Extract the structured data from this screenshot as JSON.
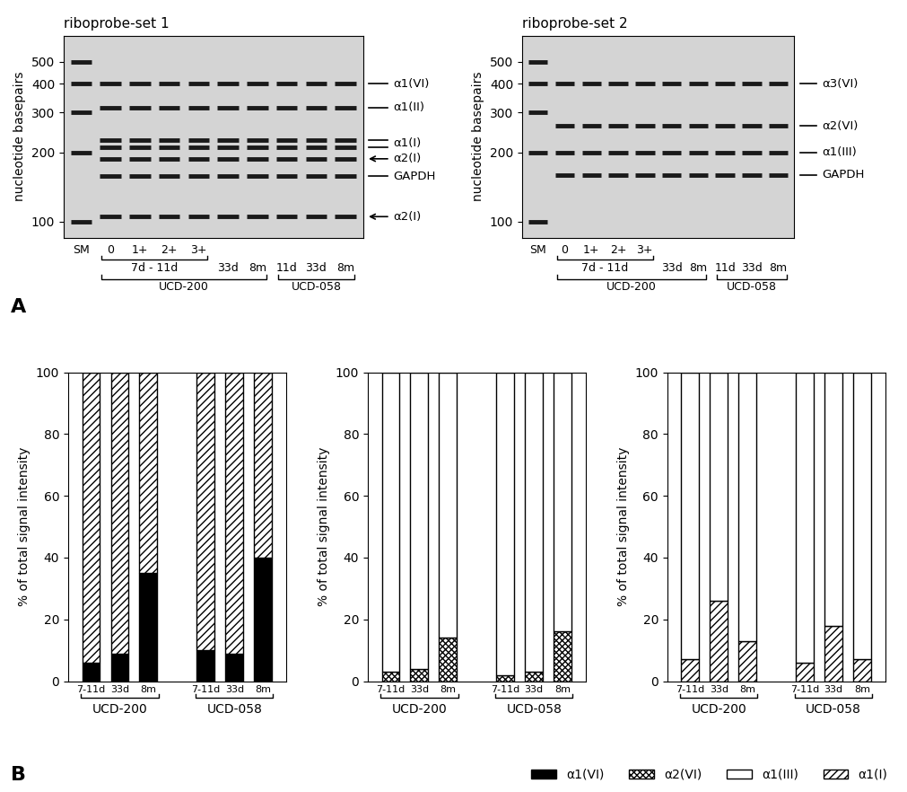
{
  "panel_labels": [
    "A",
    "B"
  ],
  "gels": [
    {
      "title": "riboprobe-set 1",
      "ylabel": "nucleotide basepairs",
      "log": true,
      "ylim": [
        85,
        650
      ],
      "yticks": [
        100,
        200,
        300,
        400,
        500
      ],
      "lanes": [
        {
          "label": "SM"
        },
        {
          "label": "0",
          "time": "7d - 11d",
          "cell_line": "UCD-200"
        },
        {
          "label": "1+",
          "time": "7d - 11d",
          "cell_line": "UCD-200"
        },
        {
          "label": "2+",
          "time": "7d - 11d",
          "cell_line": "UCD-200"
        },
        {
          "label": "3+",
          "time": "7d - 11d",
          "cell_line": "UCD-200"
        },
        {
          "time": "33d",
          "cell_line": "UCD-200"
        },
        {
          "time": "8m",
          "cell_line": "UCD-200"
        },
        {
          "time": "11d",
          "cell_line": "UCD-058"
        },
        {
          "time": "33d",
          "cell_line": "UCD-058"
        },
        {
          "time": "8m",
          "cell_line": "UCD-058"
        }
      ],
      "bands": [
        {
          "label": "α1(VI)",
          "sizes": [
            400
          ],
          "mark": "line"
        },
        {
          "label": "α1(II)",
          "sizes": [
            315
          ],
          "mark": "line"
        },
        {
          "label": "α1(I)",
          "sizes": [
            228,
            212
          ],
          "mark": "line"
        },
        {
          "label": "α2(I)",
          "sizes": [
            188
          ],
          "mark": "arrow"
        },
        {
          "label": "GAPDH",
          "sizes": [
            158
          ],
          "mark": "line"
        },
        {
          "label": "α2(I)",
          "sizes": [
            105
          ],
          "mark": "arrow"
        }
      ]
    },
    {
      "title": "riboprobe-set 2",
      "ylabel": "nucleotide basepairs",
      "log": true,
      "ylim": [
        85,
        650
      ],
      "yticks": [
        100,
        200,
        300,
        400,
        500
      ],
      "lanes": [
        {
          "label": "SM"
        },
        {
          "label": "0",
          "time": "7d - 11d",
          "cell_line": "UCD-200"
        },
        {
          "label": "1+",
          "time": "7d - 11d",
          "cell_line": "UCD-200"
        },
        {
          "label": "2+",
          "time": "7d - 11d",
          "cell_line": "UCD-200"
        },
        {
          "label": "3+",
          "time": "7d - 11d",
          "cell_line": "UCD-200"
        },
        {
          "time": "33d",
          "cell_line": "UCD-200"
        },
        {
          "time": "8m",
          "cell_line": "UCD-200"
        },
        {
          "time": "11d",
          "cell_line": "UCD-058"
        },
        {
          "time": "33d",
          "cell_line": "UCD-058"
        },
        {
          "time": "8m",
          "cell_line": "UCD-058"
        }
      ],
      "bands": [
        {
          "label": "α3(VI)",
          "sizes": [
            400
          ],
          "mark": "line"
        },
        {
          "label": "α2(VI)",
          "sizes": [
            262
          ],
          "mark": "line"
        },
        {
          "label": "α1(III)",
          "sizes": [
            200
          ],
          "mark": "line"
        },
        {
          "label": "GAPDH",
          "sizes": [
            160
          ],
          "mark": "line"
        }
      ]
    }
  ],
  "chart_data": [
    {
      "type": "bar",
      "stacked": true,
      "ylabel": "% of total signal intensity",
      "ylim": [
        0,
        100
      ],
      "yticks": [
        0,
        20,
        40,
        60,
        80,
        100
      ],
      "categories": [
        "7-11d",
        "33d",
        "8m",
        "7-11d",
        "33d",
        "8m"
      ],
      "groups": [
        "UCD-200",
        "UCD-058"
      ],
      "series": [
        {
          "name": "α1(VI)",
          "color": "#000000",
          "values": [
            6,
            9,
            35,
            10,
            9,
            40
          ]
        },
        {
          "name": "α1(I)",
          "color": "#ffffff",
          "values": [
            94,
            91,
            65,
            90,
            91,
            60
          ]
        }
      ]
    },
    {
      "type": "bar",
      "stacked": true,
      "ylabel": "% of total signal intensity",
      "ylim": [
        0,
        100
      ],
      "yticks": [
        0,
        20,
        40,
        60,
        80,
        100
      ],
      "categories": [
        "7-11d",
        "33d",
        "8m",
        "7-11d",
        "33d",
        "8m"
      ],
      "groups": [
        "UCD-200",
        "UCD-058"
      ],
      "series": [
        {
          "name": "α2(VI)",
          "color": "#ffffff",
          "values": [
            3,
            4,
            14,
            2,
            3,
            16
          ]
        },
        {
          "name": "α1(III)",
          "color": "#ffffff",
          "values": [
            97,
            96,
            86,
            98,
            97,
            84
          ]
        }
      ]
    },
    {
      "type": "bar",
      "stacked": true,
      "ylabel": "% of total signal intensity",
      "ylim": [
        0,
        100
      ],
      "yticks": [
        0,
        20,
        40,
        60,
        80,
        100
      ],
      "categories": [
        "7-11d",
        "33d",
        "8m",
        "7-11d",
        "33d",
        "8m"
      ],
      "groups": [
        "UCD-200",
        "UCD-058"
      ],
      "series": [
        {
          "name": "α1(I)",
          "color": "#ffffff",
          "values": [
            7,
            26,
            13,
            6,
            18,
            7
          ]
        },
        {
          "name": "α1(III)",
          "color": "#ffffff",
          "values": [
            93,
            74,
            87,
            94,
            82,
            93
          ]
        }
      ]
    }
  ],
  "figure_legend": [
    "α1(VI)",
    "α2(VI)",
    "α1(III)",
    "α1(I)"
  ]
}
